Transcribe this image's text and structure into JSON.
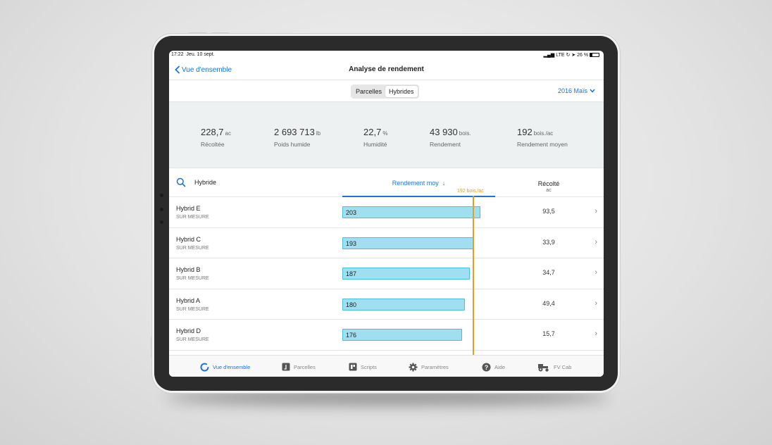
{
  "status_bar": {
    "time": "17:22",
    "date": "Jeu. 10 sept.",
    "right": "LTE ↻ ➤ 26 %"
  },
  "nav": {
    "back_label": "Vue d'ensemble",
    "title": "Analyse de rendement"
  },
  "segments": [
    {
      "label": "Parcelles",
      "active": false
    },
    {
      "label": "Hybrides",
      "active": true
    }
  ],
  "season_selector": "2016 Maïs",
  "summary": [
    {
      "value": "228,7",
      "unit": "ac",
      "label": "Récoltée"
    },
    {
      "value": "2 693 713",
      "unit": "lb",
      "label": "Poids humide"
    },
    {
      "value": "22,7",
      "unit": "%",
      "label": "Humidité"
    },
    {
      "value": "43 930",
      "unit": "bois.",
      "label": "Rendement"
    },
    {
      "value": "192",
      "unit": "bois./ac",
      "label": "Rendement moyen"
    }
  ],
  "table": {
    "search_label": "Hybride",
    "sort_column": "Rendement moy",
    "average_label": "192 bois./ac",
    "average_value": 192,
    "harvested_header": "Récolté",
    "harvested_unit": "ac",
    "rows": [
      {
        "name": "Hybrid E",
        "subtitle": "SUR MESURE",
        "yield": 203,
        "yield_label": "203",
        "harvested": "93,5"
      },
      {
        "name": "Hybrid C",
        "subtitle": "SUR MESURE",
        "yield": 193,
        "yield_label": "193",
        "harvested": "33,9"
      },
      {
        "name": "Hybrid B",
        "subtitle": "SUR MESURE",
        "yield": 187,
        "yield_label": "187",
        "harvested": "34,7"
      },
      {
        "name": "Hybrid A",
        "subtitle": "SUR MESURE",
        "yield": 180,
        "yield_label": "180",
        "harvested": "49,4"
      },
      {
        "name": "Hybrid D",
        "subtitle": "SUR MESURE",
        "yield": 176,
        "yield_label": "176",
        "harvested": "15,7"
      }
    ]
  },
  "tabs": [
    {
      "label": "Vue d'ensemble",
      "icon": "overview-ring-icon",
      "active": true
    },
    {
      "label": "Parcelles",
      "icon": "field-icon",
      "active": false
    },
    {
      "label": "Scripts",
      "icon": "script-icon",
      "active": false
    },
    {
      "label": "Paramètres",
      "icon": "gear-icon",
      "active": false
    },
    {
      "label": "Aide",
      "icon": "help-icon",
      "active": false
    },
    {
      "label": "FV Cab",
      "icon": "tractor-icon",
      "active": false
    }
  ],
  "colors": {
    "accent": "#1a73d9",
    "bar_fill": "#9fdfef",
    "bar_border": "#4bbfda",
    "average_line": "#e0a020"
  }
}
